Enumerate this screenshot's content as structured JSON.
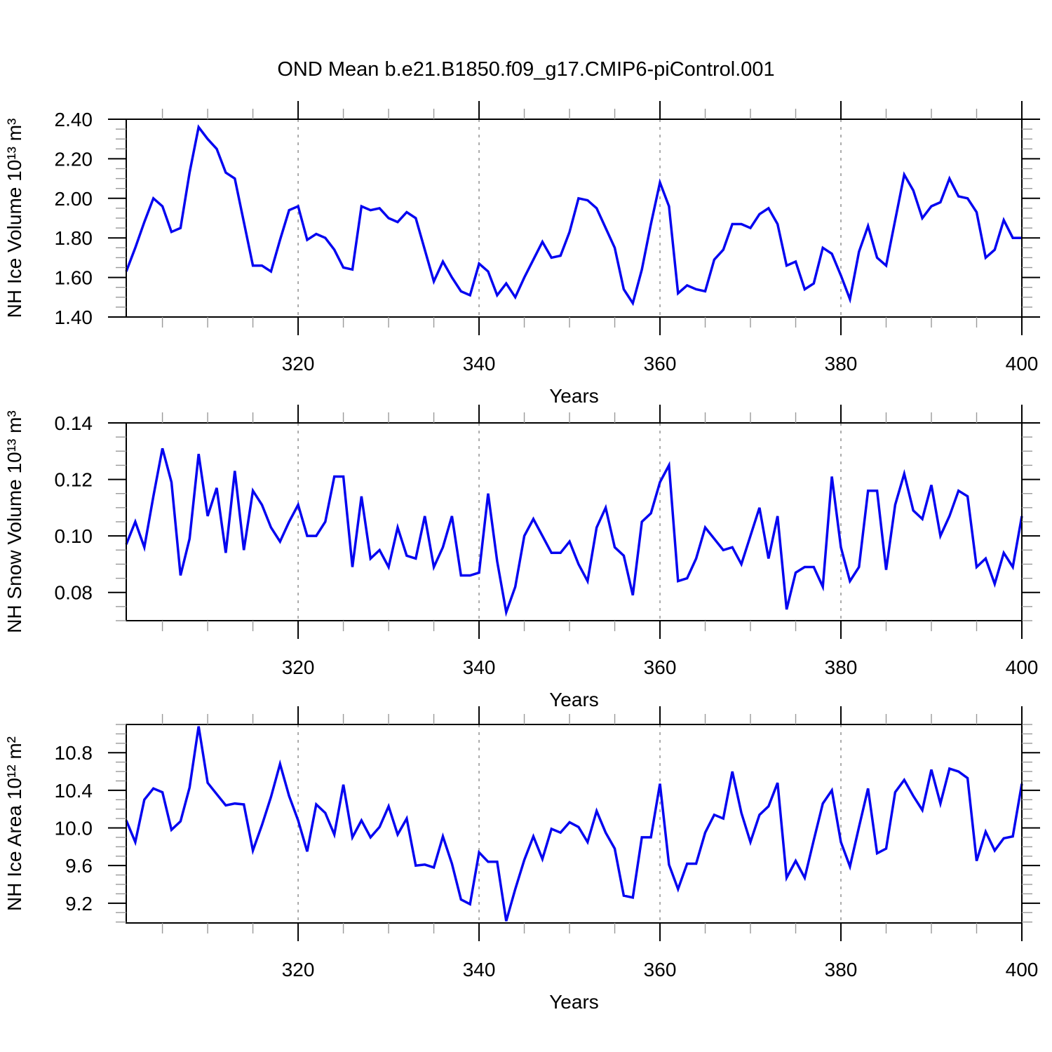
{
  "title": "OND Mean b.e21.B1850.f09_g17.CMIP6-piControl.001",
  "colors": {
    "line": "#0505F0",
    "grid": "#808080",
    "axis": "#000000",
    "minor_tick": "#9a9a9a"
  },
  "chart_data": [
    {
      "type": "line",
      "ylabel": "NH Ice Volume 10¹³ m³",
      "xlabel": "Years",
      "xlim": [
        301,
        400
      ],
      "ylim": [
        1.4,
        2.4
      ],
      "x_range": [
        301,
        400
      ],
      "x_step": 1,
      "yticks": [
        1.4,
        1.6,
        1.8,
        2.0,
        2.2,
        2.4
      ],
      "ytick_labels": [
        "1.40",
        "1.60",
        "1.80",
        "2.00",
        "2.20",
        "2.40"
      ],
      "y_minor_step": 0.05,
      "xticks": [
        320,
        340,
        360,
        380,
        400
      ],
      "xtick_labels": [
        "320",
        "340",
        "360",
        "380",
        "400"
      ],
      "x_minor_step": 5,
      "grid_x": [
        320,
        340,
        360,
        380
      ],
      "grid_style": "vertical-dashed",
      "legend": "none",
      "series": [
        {
          "name": "NH Ice Volume",
          "values": [
            1.63,
            1.75,
            1.88,
            2.0,
            1.96,
            1.83,
            1.85,
            2.13,
            2.36,
            2.3,
            2.25,
            2.13,
            2.1,
            1.88,
            1.66,
            1.66,
            1.63,
            1.79,
            1.94,
            1.96,
            1.79,
            1.82,
            1.8,
            1.74,
            1.65,
            1.64,
            1.96,
            1.94,
            1.95,
            1.9,
            1.88,
            1.93,
            1.9,
            1.74,
            1.58,
            1.68,
            1.6,
            1.53,
            1.51,
            1.67,
            1.63,
            1.51,
            1.57,
            1.5,
            1.6,
            1.69,
            1.78,
            1.7,
            1.71,
            1.83,
            2.0,
            1.99,
            1.95,
            1.85,
            1.75,
            1.54,
            1.47,
            1.64,
            1.87,
            2.08,
            1.96,
            1.52,
            1.56,
            1.54,
            1.53,
            1.69,
            1.74,
            1.87,
            1.87,
            1.85,
            1.92,
            1.95,
            1.87,
            1.66,
            1.68,
            1.54,
            1.57,
            1.75,
            1.72,
            1.61,
            1.49,
            1.73,
            1.86,
            1.7,
            1.66,
            1.89,
            2.12,
            2.04,
            1.9,
            1.96,
            1.98,
            2.1,
            2.01,
            2.0,
            1.93,
            1.7,
            1.74,
            1.89,
            1.8,
            1.8
          ]
        }
      ]
    },
    {
      "type": "line",
      "ylabel": "NH Snow Volume 10¹³ m³",
      "xlabel": "Years",
      "xlim": [
        301,
        400
      ],
      "ylim": [
        0.07,
        0.14
      ],
      "x_range": [
        301,
        400
      ],
      "x_step": 1,
      "yticks": [
        0.08,
        0.1,
        0.12,
        0.14
      ],
      "ytick_labels": [
        "0.08",
        "0.10",
        "0.12",
        "0.14"
      ],
      "y_minor_step": 0.005,
      "xticks": [
        320,
        340,
        360,
        380,
        400
      ],
      "xtick_labels": [
        "320",
        "340",
        "360",
        "380",
        "400"
      ],
      "x_minor_step": 5,
      "grid_x": [
        320,
        340,
        360,
        380
      ],
      "grid_style": "vertical-dashed",
      "legend": "none",
      "series": [
        {
          "name": "NH Snow Volume",
          "values": [
            0.097,
            0.105,
            0.096,
            0.114,
            0.131,
            0.119,
            0.086,
            0.099,
            0.129,
            0.107,
            0.117,
            0.094,
            0.123,
            0.095,
            0.116,
            0.111,
            0.103,
            0.098,
            0.105,
            0.111,
            0.1,
            0.1,
            0.105,
            0.121,
            0.121,
            0.089,
            0.114,
            0.092,
            0.095,
            0.089,
            0.103,
            0.093,
            0.092,
            0.107,
            0.089,
            0.096,
            0.107,
            0.086,
            0.086,
            0.087,
            0.115,
            0.091,
            0.073,
            0.082,
            0.1,
            0.106,
            0.1,
            0.094,
            0.094,
            0.098,
            0.09,
            0.084,
            0.103,
            0.11,
            0.096,
            0.093,
            0.079,
            0.105,
            0.108,
            0.119,
            0.125,
            0.084,
            0.085,
            0.092,
            0.103,
            0.099,
            0.095,
            0.096,
            0.09,
            0.1,
            0.11,
            0.092,
            0.107,
            0.074,
            0.087,
            0.089,
            0.089,
            0.082,
            0.121,
            0.096,
            0.084,
            0.089,
            0.116,
            0.116,
            0.088,
            0.111,
            0.122,
            0.109,
            0.106,
            0.118,
            0.1,
            0.107,
            0.116,
            0.114,
            0.089,
            0.092,
            0.083,
            0.094,
            0.089,
            0.107
          ]
        }
      ]
    },
    {
      "type": "line",
      "ylabel": "NH Ice Area 10¹² m²",
      "xlabel": "Years",
      "xlim": [
        301,
        400
      ],
      "ylim": [
        8.99,
        11.1
      ],
      "x_range": [
        301,
        400
      ],
      "x_step": 1,
      "yticks": [
        9.2,
        9.6,
        10.0,
        10.4,
        10.8
      ],
      "ytick_labels": [
        "9.2",
        "9.6",
        "10.0",
        "10.4",
        "10.8"
      ],
      "y_minor_step": 0.1,
      "xticks": [
        320,
        340,
        360,
        380,
        400
      ],
      "xtick_labels": [
        "320",
        "340",
        "360",
        "380",
        "400"
      ],
      "x_minor_step": 5,
      "grid_x": [
        320,
        340,
        360,
        380
      ],
      "grid_style": "vertical-dashed",
      "legend": "none",
      "series": [
        {
          "name": "NH Ice Area",
          "values": [
            10.08,
            9.85,
            10.3,
            10.42,
            10.38,
            9.98,
            10.07,
            10.43,
            11.08,
            10.48,
            10.36,
            10.24,
            10.26,
            10.25,
            9.76,
            10.03,
            10.33,
            10.68,
            10.34,
            10.08,
            9.75,
            10.25,
            10.16,
            9.93,
            10.46,
            9.9,
            10.08,
            9.9,
            10.01,
            10.23,
            9.93,
            10.1,
            9.6,
            9.61,
            9.58,
            9.91,
            9.62,
            9.24,
            9.19,
            9.74,
            9.64,
            9.64,
            9.01,
            9.35,
            9.66,
            9.91,
            9.67,
            9.99,
            9.95,
            10.06,
            10.01,
            9.85,
            10.18,
            9.95,
            9.78,
            9.28,
            9.26,
            9.9,
            9.9,
            10.47,
            9.61,
            9.35,
            9.62,
            9.62,
            9.95,
            10.14,
            10.1,
            10.6,
            10.16,
            9.85,
            10.14,
            10.23,
            10.48,
            9.47,
            9.65,
            9.47,
            9.87,
            10.26,
            10.4,
            9.85,
            9.59,
            10.01,
            10.42,
            9.73,
            9.78,
            10.38,
            10.51,
            10.34,
            10.19,
            10.62,
            10.26,
            10.63,
            10.6,
            10.53,
            9.65,
            9.96,
            9.76,
            9.89,
            9.91,
            10.47
          ]
        }
      ]
    }
  ]
}
